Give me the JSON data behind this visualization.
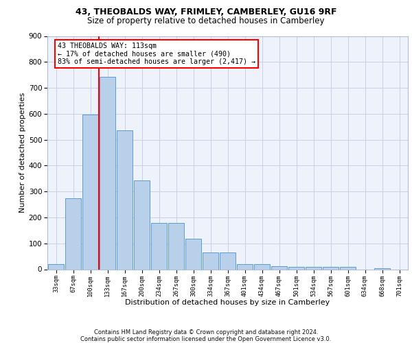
{
  "title_line1": "43, THEOBALDS WAY, FRIMLEY, CAMBERLEY, GU16 9RF",
  "title_line2": "Size of property relative to detached houses in Camberley",
  "xlabel": "Distribution of detached houses by size in Camberley",
  "ylabel": "Number of detached properties",
  "categories": [
    "33sqm",
    "67sqm",
    "100sqm",
    "133sqm",
    "167sqm",
    "200sqm",
    "234sqm",
    "267sqm",
    "300sqm",
    "334sqm",
    "367sqm",
    "401sqm",
    "434sqm",
    "467sqm",
    "501sqm",
    "534sqm",
    "567sqm",
    "601sqm",
    "634sqm",
    "668sqm",
    "701sqm"
  ],
  "values": [
    20,
    275,
    597,
    742,
    537,
    343,
    178,
    178,
    117,
    65,
    65,
    20,
    20,
    13,
    8,
    8,
    8,
    8,
    0,
    5,
    0
  ],
  "bar_color": "#b8d0ea",
  "bar_edge_color": "#5b9bd5",
  "vline_x": 2.5,
  "vline_color": "red",
  "annotation_text": "43 THEOBALDS WAY: 113sqm\n← 17% of detached houses are smaller (490)\n83% of semi-detached houses are larger (2,417) →",
  "annotation_box_color": "white",
  "annotation_box_edge_color": "red",
  "ylim": [
    0,
    900
  ],
  "yticks": [
    0,
    100,
    200,
    300,
    400,
    500,
    600,
    700,
    800,
    900
  ],
  "footer_text": "Contains HM Land Registry data © Crown copyright and database right 2024.\nContains public sector information licensed under the Open Government Licence v3.0.",
  "bg_color": "#eef2fb",
  "grid_color": "#c8d0e8"
}
